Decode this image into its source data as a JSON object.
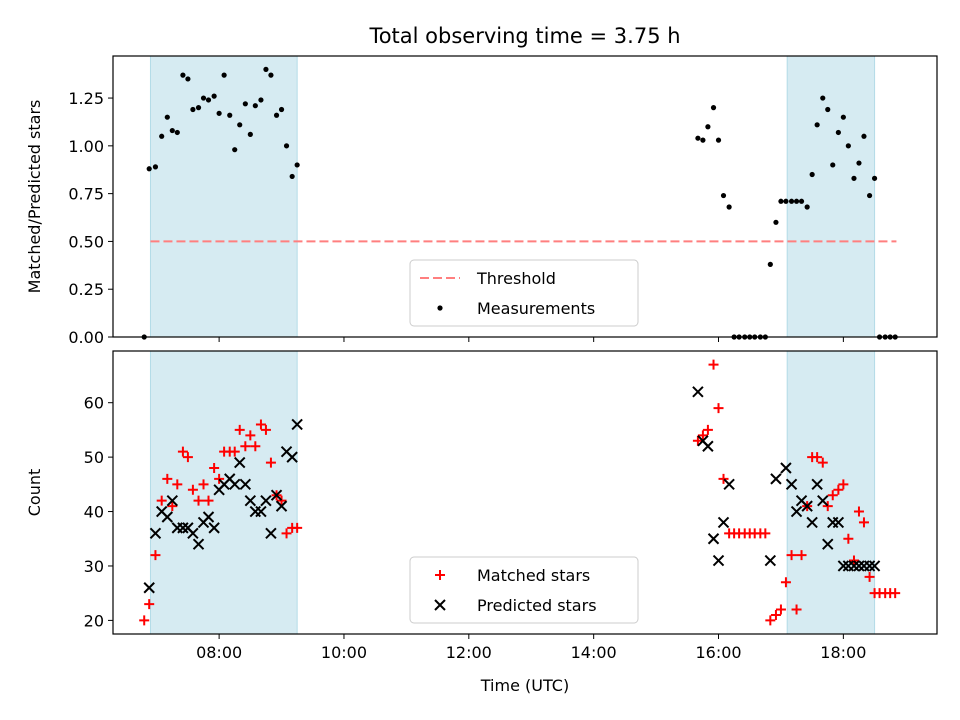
{
  "figure": {
    "title": "Total observing time = 3.75 h"
  },
  "chart_data": [
    {
      "type": "scatter",
      "title": "Total observing time = 3.75 h",
      "xlabel": "",
      "ylabel": "Matched/Predicted stars",
      "x_unit": "hours (UTC)",
      "xlim": [
        6.3,
        19.5
      ],
      "ylim": [
        0.0,
        1.47
      ],
      "yticks": [
        0.0,
        0.25,
        0.5,
        0.75,
        1.0,
        1.25
      ],
      "ytick_labels": [
        "0.00",
        "0.25",
        "0.50",
        "0.75",
        "1.00",
        "1.25"
      ],
      "xtick_labels_shown": false,
      "shaded_intervals": [
        [
          6.9,
          9.25
        ],
        [
          17.1,
          18.5
        ]
      ],
      "threshold": {
        "name": "Threshold",
        "y": 0.5,
        "x": [
          6.9,
          18.85
        ],
        "color": "#ff7f7f"
      },
      "legend": {
        "position": "lower-center",
        "entries": [
          "Threshold",
          "Measurements"
        ]
      },
      "series": [
        {
          "name": "Measurements",
          "color": "#000000",
          "x": [
            6.8,
            6.88,
            6.98,
            7.08,
            7.17,
            7.25,
            7.33,
            7.42,
            7.5,
            7.58,
            7.67,
            7.75,
            7.83,
            7.92,
            8.0,
            8.08,
            8.17,
            8.25,
            8.33,
            8.42,
            8.5,
            8.58,
            8.67,
            8.75,
            8.83,
            8.92,
            9.0,
            9.08,
            9.17,
            9.25,
            15.67,
            15.75,
            15.83,
            15.92,
            16.0,
            16.08,
            16.17,
            16.25,
            16.33,
            16.42,
            16.5,
            16.58,
            16.67,
            16.75,
            16.83,
            16.92,
            17.0,
            17.08,
            17.17,
            17.25,
            17.33,
            17.42,
            17.5,
            17.58,
            17.67,
            17.75,
            17.83,
            17.92,
            18.0,
            18.08,
            18.17,
            18.25,
            18.33,
            18.42,
            18.5,
            18.58,
            18.67,
            18.75,
            18.83
          ],
          "y": [
            0.0,
            0.88,
            0.89,
            1.05,
            1.15,
            1.08,
            1.07,
            1.37,
            1.35,
            1.19,
            1.2,
            1.25,
            1.24,
            1.26,
            1.17,
            1.37,
            1.16,
            0.98,
            1.11,
            1.22,
            1.06,
            1.21,
            1.24,
            1.4,
            1.37,
            1.16,
            1.19,
            1.0,
            0.84,
            0.9,
            1.04,
            1.03,
            1.1,
            1.2,
            1.03,
            0.74,
            0.68,
            0.0,
            0.0,
            0.0,
            0.0,
            0.0,
            0.0,
            0.0,
            0.38,
            0.6,
            0.71,
            0.71,
            0.71,
            0.71,
            0.71,
            0.68,
            0.85,
            1.11,
            1.25,
            1.19,
            0.9,
            1.07,
            1.15,
            1.0,
            0.83,
            0.91,
            1.05,
            0.74,
            0.83,
            0.0,
            0.0,
            0.0,
            0.0
          ]
        }
      ]
    },
    {
      "type": "scatter",
      "title": "",
      "xlabel": "Time (UTC)",
      "ylabel": "Count",
      "x_unit": "hours (UTC)",
      "xlim": [
        6.3,
        19.5
      ],
      "ylim": [
        17.5,
        69.5
      ],
      "xticks": [
        8,
        10,
        12,
        14,
        16,
        18
      ],
      "xtick_labels": [
        "08:00",
        "10:00",
        "12:00",
        "14:00",
        "16:00",
        "18:00"
      ],
      "yticks": [
        20,
        30,
        40,
        50,
        60
      ],
      "ytick_labels": [
        "20",
        "30",
        "40",
        "50",
        "60"
      ],
      "shaded_intervals": [
        [
          6.9,
          9.25
        ],
        [
          17.1,
          18.5
        ]
      ],
      "legend": {
        "position": "lower-center",
        "entries": [
          "Matched stars",
          "Predicted stars"
        ]
      },
      "series": [
        {
          "name": "Matched stars",
          "marker": "plus",
          "color": "#ff0000",
          "x": [
            6.8,
            6.88,
            6.98,
            7.08,
            7.17,
            7.25,
            7.33,
            7.42,
            7.5,
            7.58,
            7.67,
            7.75,
            7.83,
            7.92,
            8.0,
            8.08,
            8.17,
            8.25,
            8.33,
            8.42,
            8.5,
            8.58,
            8.67,
            8.75,
            8.83,
            8.92,
            9.0,
            9.08,
            9.17,
            9.25,
            15.67,
            15.75,
            15.83,
            15.92,
            16.0,
            16.08,
            16.17,
            16.25,
            16.33,
            16.42,
            16.5,
            16.58,
            16.67,
            16.75,
            16.83,
            16.92,
            17.0,
            17.08,
            17.17,
            17.25,
            17.33,
            17.42,
            17.5,
            17.58,
            17.67,
            17.75,
            17.83,
            17.92,
            18.0,
            18.08,
            18.17,
            18.25,
            18.33,
            18.42,
            18.5,
            18.58,
            18.67,
            18.75,
            18.83
          ],
          "y": [
            20,
            23,
            32,
            42,
            46,
            41,
            45,
            51,
            50,
            44,
            42,
            45,
            42,
            48,
            46,
            51,
            51,
            51,
            55,
            52,
            54,
            52,
            56,
            55,
            49,
            43,
            42,
            36,
            37,
            37,
            53,
            54,
            55,
            67,
            59,
            46,
            36,
            36,
            36,
            36,
            36,
            36,
            36,
            36,
            20,
            21,
            22,
            27,
            32,
            22,
            32,
            41,
            50,
            50,
            49,
            41,
            43,
            44,
            45,
            35,
            31,
            40,
            38,
            28,
            25,
            25,
            25,
            25,
            25
          ]
        },
        {
          "name": "Predicted stars",
          "marker": "x",
          "color": "#000000",
          "x": [
            6.88,
            6.98,
            7.08,
            7.17,
            7.25,
            7.33,
            7.42,
            7.5,
            7.58,
            7.67,
            7.75,
            7.83,
            7.92,
            8.0,
            8.08,
            8.17,
            8.25,
            8.33,
            8.42,
            8.5,
            8.58,
            8.67,
            8.75,
            8.83,
            8.92,
            9.0,
            9.08,
            9.17,
            9.25,
            15.67,
            15.75,
            15.83,
            15.92,
            16.0,
            16.08,
            16.17,
            16.83,
            16.92,
            17.08,
            17.17,
            17.25,
            17.33,
            17.42,
            17.5,
            17.58,
            17.67,
            17.75,
            17.83,
            17.92,
            18.0,
            18.08,
            18.17,
            18.25,
            18.33,
            18.42,
            18.5
          ],
          "y": [
            26,
            36,
            40,
            39,
            42,
            37,
            37,
            37,
            36,
            34,
            38,
            39,
            37,
            44,
            45,
            46,
            45,
            49,
            45,
            42,
            40,
            40,
            42,
            36,
            43,
            41,
            51,
            50,
            56,
            62,
            53,
            52,
            35,
            31,
            38,
            45,
            31,
            46,
            48,
            45,
            40,
            42,
            41,
            38,
            45,
            42,
            34,
            38,
            38,
            30,
            30,
            30,
            30,
            30,
            30,
            30
          ]
        }
      ]
    }
  ]
}
